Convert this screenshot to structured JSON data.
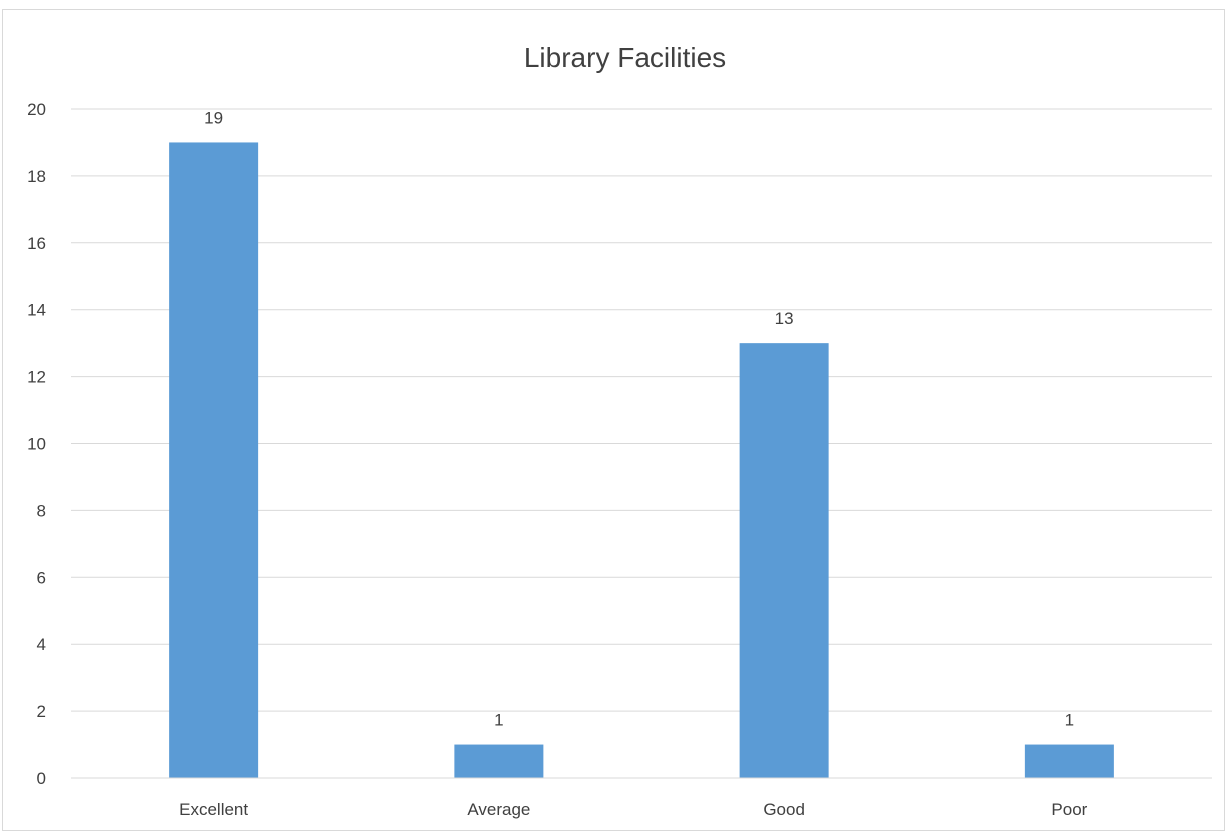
{
  "chart_data": {
    "type": "bar",
    "title": "Library Facilities",
    "xlabel": "",
    "ylabel": "",
    "categories": [
      "Excellent",
      "Average",
      "Good",
      "Poor"
    ],
    "values": [
      19,
      1,
      13,
      1
    ],
    "data_labels": [
      "19",
      "1",
      "13",
      "1"
    ],
    "ylim": [
      0,
      20
    ],
    "yticks": [
      0,
      2,
      4,
      6,
      8,
      10,
      12,
      14,
      16,
      18,
      20
    ],
    "grid": true,
    "legend": "none",
    "bar_color": "#5b9bd5",
    "grid_color": "#d9d9d9",
    "text_color": "#404040"
  }
}
